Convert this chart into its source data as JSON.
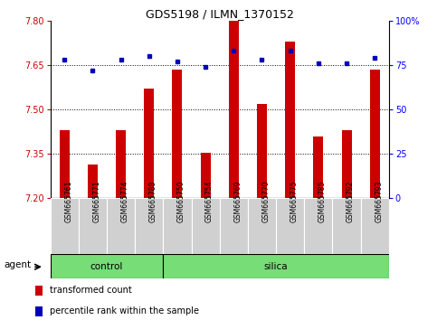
{
  "title": "GDS5198 / ILMN_1370152",
  "samples": [
    "GSM665761",
    "GSM665771",
    "GSM665774",
    "GSM665788",
    "GSM665750",
    "GSM665754",
    "GSM665769",
    "GSM665770",
    "GSM665775",
    "GSM665785",
    "GSM665792",
    "GSM665793"
  ],
  "n_control": 4,
  "red_values": [
    7.43,
    7.315,
    7.43,
    7.57,
    7.635,
    7.355,
    7.8,
    7.52,
    7.73,
    7.41,
    7.43,
    7.635
  ],
  "blue_values": [
    78,
    72,
    78,
    80,
    77,
    74,
    83,
    78,
    83,
    76,
    76,
    79
  ],
  "ylim_left": [
    7.2,
    7.8
  ],
  "ylim_right": [
    0,
    100
  ],
  "yticks_left": [
    7.2,
    7.35,
    7.5,
    7.65,
    7.8
  ],
  "yticks_right": [
    0,
    25,
    50,
    75,
    100
  ],
  "ytick_labels_right": [
    "0",
    "25",
    "50",
    "75",
    "100%"
  ],
  "bar_color": "#cc0000",
  "dot_color": "#0000bb",
  "group_color": "#77dd77",
  "bar_width": 0.35,
  "legend_red": "transformed count",
  "legend_blue": "percentile rank within the sample",
  "agent_label": "agent",
  "control_label": "control",
  "silica_label": "silica",
  "grid_dotted_ticks": [
    7.35,
    7.5,
    7.65
  ],
  "title_fontsize": 9,
  "tick_fontsize": 7,
  "label_fontsize": 7,
  "legend_fontsize": 7
}
